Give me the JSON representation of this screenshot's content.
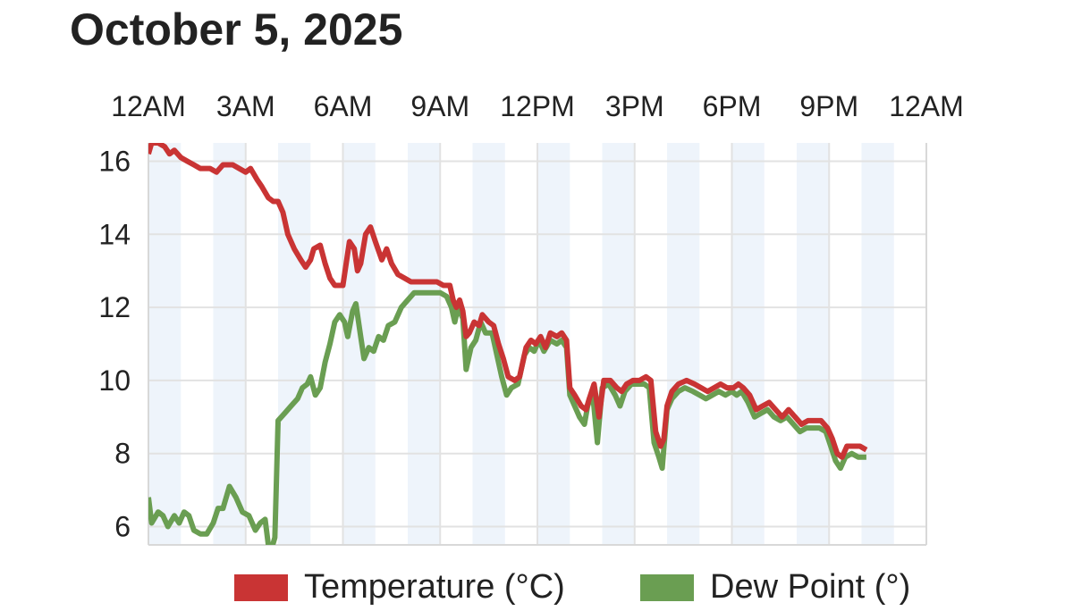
{
  "title": "October 5, 2025",
  "chart_data": {
    "type": "line",
    "title": "October 5, 2025",
    "xlabel": "",
    "ylabel": "",
    "x_unit": "hours since midnight",
    "xlim": [
      0,
      24
    ],
    "ylim": [
      5.5,
      16.5
    ],
    "x_ticks": [
      {
        "hour": 0,
        "label": "12AM"
      },
      {
        "hour": 3,
        "label": "3AM"
      },
      {
        "hour": 6,
        "label": "6AM"
      },
      {
        "hour": 9,
        "label": "9AM"
      },
      {
        "hour": 12,
        "label": "12PM"
      },
      {
        "hour": 15,
        "label": "3PM"
      },
      {
        "hour": 18,
        "label": "6PM"
      },
      {
        "hour": 21,
        "label": "9PM"
      },
      {
        "hour": 24,
        "label": "12AM"
      }
    ],
    "y_ticks": [
      6,
      8,
      10,
      12,
      14,
      16
    ],
    "shaded_hour_bands": [
      [
        0,
        1
      ],
      [
        2,
        3
      ],
      [
        4,
        5
      ],
      [
        6,
        7
      ],
      [
        8,
        9
      ],
      [
        10,
        11
      ],
      [
        12,
        13
      ],
      [
        14,
        15
      ],
      [
        16,
        17
      ],
      [
        18,
        19
      ],
      [
        20,
        21
      ],
      [
        22,
        23
      ]
    ],
    "series": [
      {
        "name": "Temperature (°C)",
        "color": "#c93434",
        "points": [
          [
            0.0,
            16.2
          ],
          [
            0.1,
            16.5
          ],
          [
            0.3,
            16.5
          ],
          [
            0.5,
            16.4
          ],
          [
            0.65,
            16.2
          ],
          [
            0.8,
            16.3
          ],
          [
            1.0,
            16.1
          ],
          [
            1.2,
            16.0
          ],
          [
            1.4,
            15.9
          ],
          [
            1.6,
            15.8
          ],
          [
            1.9,
            15.8
          ],
          [
            2.1,
            15.7
          ],
          [
            2.3,
            15.9
          ],
          [
            2.6,
            15.9
          ],
          [
            2.8,
            15.8
          ],
          [
            3.0,
            15.7
          ],
          [
            3.15,
            15.8
          ],
          [
            3.35,
            15.5
          ],
          [
            3.5,
            15.3
          ],
          [
            3.7,
            15.0
          ],
          [
            3.85,
            14.9
          ],
          [
            4.0,
            14.9
          ],
          [
            4.15,
            14.6
          ],
          [
            4.3,
            14.0
          ],
          [
            4.5,
            13.6
          ],
          [
            4.7,
            13.3
          ],
          [
            4.85,
            13.1
          ],
          [
            5.0,
            13.3
          ],
          [
            5.1,
            13.6
          ],
          [
            5.3,
            13.7
          ],
          [
            5.45,
            13.2
          ],
          [
            5.6,
            12.8
          ],
          [
            5.75,
            12.6
          ],
          [
            6.0,
            12.6
          ],
          [
            6.2,
            13.8
          ],
          [
            6.35,
            13.6
          ],
          [
            6.45,
            13.0
          ],
          [
            6.55,
            13.2
          ],
          [
            6.7,
            14.0
          ],
          [
            6.85,
            14.2
          ],
          [
            7.0,
            13.8
          ],
          [
            7.2,
            13.3
          ],
          [
            7.35,
            13.6
          ],
          [
            7.5,
            13.2
          ],
          [
            7.7,
            12.9
          ],
          [
            7.9,
            12.8
          ],
          [
            8.1,
            12.7
          ],
          [
            8.3,
            12.7
          ],
          [
            8.6,
            12.7
          ],
          [
            8.9,
            12.7
          ],
          [
            9.1,
            12.6
          ],
          [
            9.3,
            12.6
          ],
          [
            9.4,
            12.2
          ],
          [
            9.5,
            12.0
          ],
          [
            9.6,
            12.2
          ],
          [
            9.7,
            11.9
          ],
          [
            9.8,
            11.2
          ],
          [
            9.9,
            11.3
          ],
          [
            10.05,
            11.6
          ],
          [
            10.2,
            11.5
          ],
          [
            10.3,
            11.8
          ],
          [
            10.5,
            11.6
          ],
          [
            10.65,
            11.5
          ],
          [
            10.8,
            11.0
          ],
          [
            10.95,
            10.6
          ],
          [
            11.1,
            10.1
          ],
          [
            11.3,
            10.0
          ],
          [
            11.45,
            10.1
          ],
          [
            11.65,
            10.9
          ],
          [
            11.8,
            11.1
          ],
          [
            11.95,
            11.0
          ],
          [
            12.1,
            11.2
          ],
          [
            12.25,
            10.9
          ],
          [
            12.4,
            11.3
          ],
          [
            12.6,
            11.2
          ],
          [
            12.75,
            11.3
          ],
          [
            12.9,
            11.1
          ],
          [
            13.0,
            9.8
          ],
          [
            13.15,
            9.6
          ],
          [
            13.35,
            9.3
          ],
          [
            13.5,
            9.2
          ],
          [
            13.6,
            9.5
          ],
          [
            13.75,
            9.9
          ],
          [
            13.9,
            9.0
          ],
          [
            14.05,
            10.0
          ],
          [
            14.25,
            10.0
          ],
          [
            14.45,
            9.8
          ],
          [
            14.6,
            9.7
          ],
          [
            14.75,
            9.9
          ],
          [
            14.95,
            10.0
          ],
          [
            15.15,
            10.0
          ],
          [
            15.35,
            10.1
          ],
          [
            15.5,
            10.0
          ],
          [
            15.65,
            8.6
          ],
          [
            15.8,
            8.2
          ],
          [
            15.9,
            8.4
          ],
          [
            16.0,
            9.3
          ],
          [
            16.15,
            9.7
          ],
          [
            16.35,
            9.9
          ],
          [
            16.6,
            10.0
          ],
          [
            16.85,
            9.9
          ],
          [
            17.05,
            9.8
          ],
          [
            17.25,
            9.7
          ],
          [
            17.45,
            9.8
          ],
          [
            17.65,
            9.9
          ],
          [
            17.85,
            9.8
          ],
          [
            18.05,
            9.8
          ],
          [
            18.2,
            9.9
          ],
          [
            18.35,
            9.8
          ],
          [
            18.55,
            9.6
          ],
          [
            18.75,
            9.2
          ],
          [
            18.95,
            9.3
          ],
          [
            19.15,
            9.4
          ],
          [
            19.35,
            9.2
          ],
          [
            19.55,
            9.0
          ],
          [
            19.75,
            9.2
          ],
          [
            19.95,
            9.0
          ],
          [
            20.15,
            8.8
          ],
          [
            20.35,
            8.9
          ],
          [
            20.55,
            8.9
          ],
          [
            20.75,
            8.9
          ],
          [
            20.95,
            8.7
          ],
          [
            21.1,
            8.4
          ],
          [
            21.25,
            8.0
          ],
          [
            21.4,
            7.9
          ],
          [
            21.55,
            8.2
          ],
          [
            21.75,
            8.2
          ],
          [
            21.95,
            8.2
          ],
          [
            22.15,
            8.1
          ]
        ]
      },
      {
        "name": "Dew Point (°)",
        "color": "#6a9e52",
        "points": [
          [
            0.0,
            6.8
          ],
          [
            0.1,
            6.1
          ],
          [
            0.3,
            6.4
          ],
          [
            0.45,
            6.3
          ],
          [
            0.6,
            6.0
          ],
          [
            0.8,
            6.3
          ],
          [
            0.95,
            6.1
          ],
          [
            1.1,
            6.4
          ],
          [
            1.25,
            6.3
          ],
          [
            1.4,
            5.9
          ],
          [
            1.6,
            5.8
          ],
          [
            1.8,
            5.8
          ],
          [
            2.0,
            6.1
          ],
          [
            2.15,
            6.5
          ],
          [
            2.3,
            6.5
          ],
          [
            2.5,
            7.1
          ],
          [
            2.7,
            6.8
          ],
          [
            2.9,
            6.4
          ],
          [
            3.1,
            6.3
          ],
          [
            3.3,
            5.9
          ],
          [
            3.45,
            6.1
          ],
          [
            3.6,
            6.2
          ],
          [
            3.7,
            5.5
          ],
          [
            3.8,
            5.4
          ],
          [
            3.9,
            5.7
          ],
          [
            4.0,
            8.9
          ],
          [
            4.2,
            9.1
          ],
          [
            4.4,
            9.3
          ],
          [
            4.6,
            9.5
          ],
          [
            4.75,
            9.8
          ],
          [
            4.9,
            9.9
          ],
          [
            5.0,
            10.1
          ],
          [
            5.15,
            9.6
          ],
          [
            5.3,
            9.8
          ],
          [
            5.45,
            10.5
          ],
          [
            5.6,
            11.0
          ],
          [
            5.75,
            11.6
          ],
          [
            5.9,
            11.8
          ],
          [
            6.05,
            11.6
          ],
          [
            6.15,
            11.2
          ],
          [
            6.3,
            11.9
          ],
          [
            6.4,
            12.1
          ],
          [
            6.55,
            11.2
          ],
          [
            6.65,
            10.6
          ],
          [
            6.8,
            10.9
          ],
          [
            6.95,
            10.8
          ],
          [
            7.1,
            11.2
          ],
          [
            7.25,
            11.1
          ],
          [
            7.4,
            11.5
          ],
          [
            7.6,
            11.6
          ],
          [
            7.8,
            12.0
          ],
          [
            8.0,
            12.2
          ],
          [
            8.2,
            12.4
          ],
          [
            8.4,
            12.4
          ],
          [
            8.7,
            12.4
          ],
          [
            9.0,
            12.4
          ],
          [
            9.2,
            12.3
          ],
          [
            9.35,
            12.0
          ],
          [
            9.45,
            11.6
          ],
          [
            9.55,
            12.0
          ],
          [
            9.7,
            11.7
          ],
          [
            9.8,
            10.3
          ],
          [
            9.95,
            10.9
          ],
          [
            10.1,
            11.1
          ],
          [
            10.25,
            11.6
          ],
          [
            10.4,
            11.3
          ],
          [
            10.6,
            11.3
          ],
          [
            10.75,
            10.7
          ],
          [
            10.9,
            10.1
          ],
          [
            11.05,
            9.6
          ],
          [
            11.2,
            9.8
          ],
          [
            11.4,
            9.9
          ],
          [
            11.6,
            10.7
          ],
          [
            11.75,
            10.9
          ],
          [
            11.9,
            10.8
          ],
          [
            12.05,
            11.1
          ],
          [
            12.2,
            10.8
          ],
          [
            12.4,
            11.1
          ],
          [
            12.6,
            11.0
          ],
          [
            12.75,
            11.1
          ],
          [
            12.9,
            10.9
          ],
          [
            13.0,
            9.6
          ],
          [
            13.15,
            9.3
          ],
          [
            13.3,
            9.0
          ],
          [
            13.45,
            8.8
          ],
          [
            13.55,
            9.3
          ],
          [
            13.7,
            9.7
          ],
          [
            13.85,
            8.3
          ],
          [
            14.0,
            9.8
          ],
          [
            14.2,
            9.9
          ],
          [
            14.4,
            9.6
          ],
          [
            14.55,
            9.3
          ],
          [
            14.7,
            9.7
          ],
          [
            14.9,
            9.9
          ],
          [
            15.1,
            9.9
          ],
          [
            15.3,
            9.9
          ],
          [
            15.45,
            9.8
          ],
          [
            15.6,
            8.3
          ],
          [
            15.75,
            7.9
          ],
          [
            15.85,
            7.6
          ],
          [
            16.0,
            9.2
          ],
          [
            16.15,
            9.5
          ],
          [
            16.35,
            9.7
          ],
          [
            16.55,
            9.8
          ],
          [
            16.8,
            9.7
          ],
          [
            17.0,
            9.6
          ],
          [
            17.2,
            9.5
          ],
          [
            17.4,
            9.6
          ],
          [
            17.6,
            9.7
          ],
          [
            17.8,
            9.6
          ],
          [
            18.0,
            9.7
          ],
          [
            18.15,
            9.6
          ],
          [
            18.3,
            9.7
          ],
          [
            18.5,
            9.4
          ],
          [
            18.7,
            9.0
          ],
          [
            18.9,
            9.1
          ],
          [
            19.1,
            9.2
          ],
          [
            19.3,
            9.0
          ],
          [
            19.5,
            8.9
          ],
          [
            19.7,
            9.0
          ],
          [
            19.9,
            8.8
          ],
          [
            20.1,
            8.6
          ],
          [
            20.3,
            8.7
          ],
          [
            20.5,
            8.7
          ],
          [
            20.7,
            8.7
          ],
          [
            20.9,
            8.6
          ],
          [
            21.05,
            8.2
          ],
          [
            21.2,
            7.8
          ],
          [
            21.35,
            7.6
          ],
          [
            21.5,
            7.9
          ],
          [
            21.7,
            8.0
          ],
          [
            21.9,
            7.9
          ],
          [
            22.15,
            7.9
          ]
        ]
      }
    ],
    "legend_position": "bottom-center"
  }
}
